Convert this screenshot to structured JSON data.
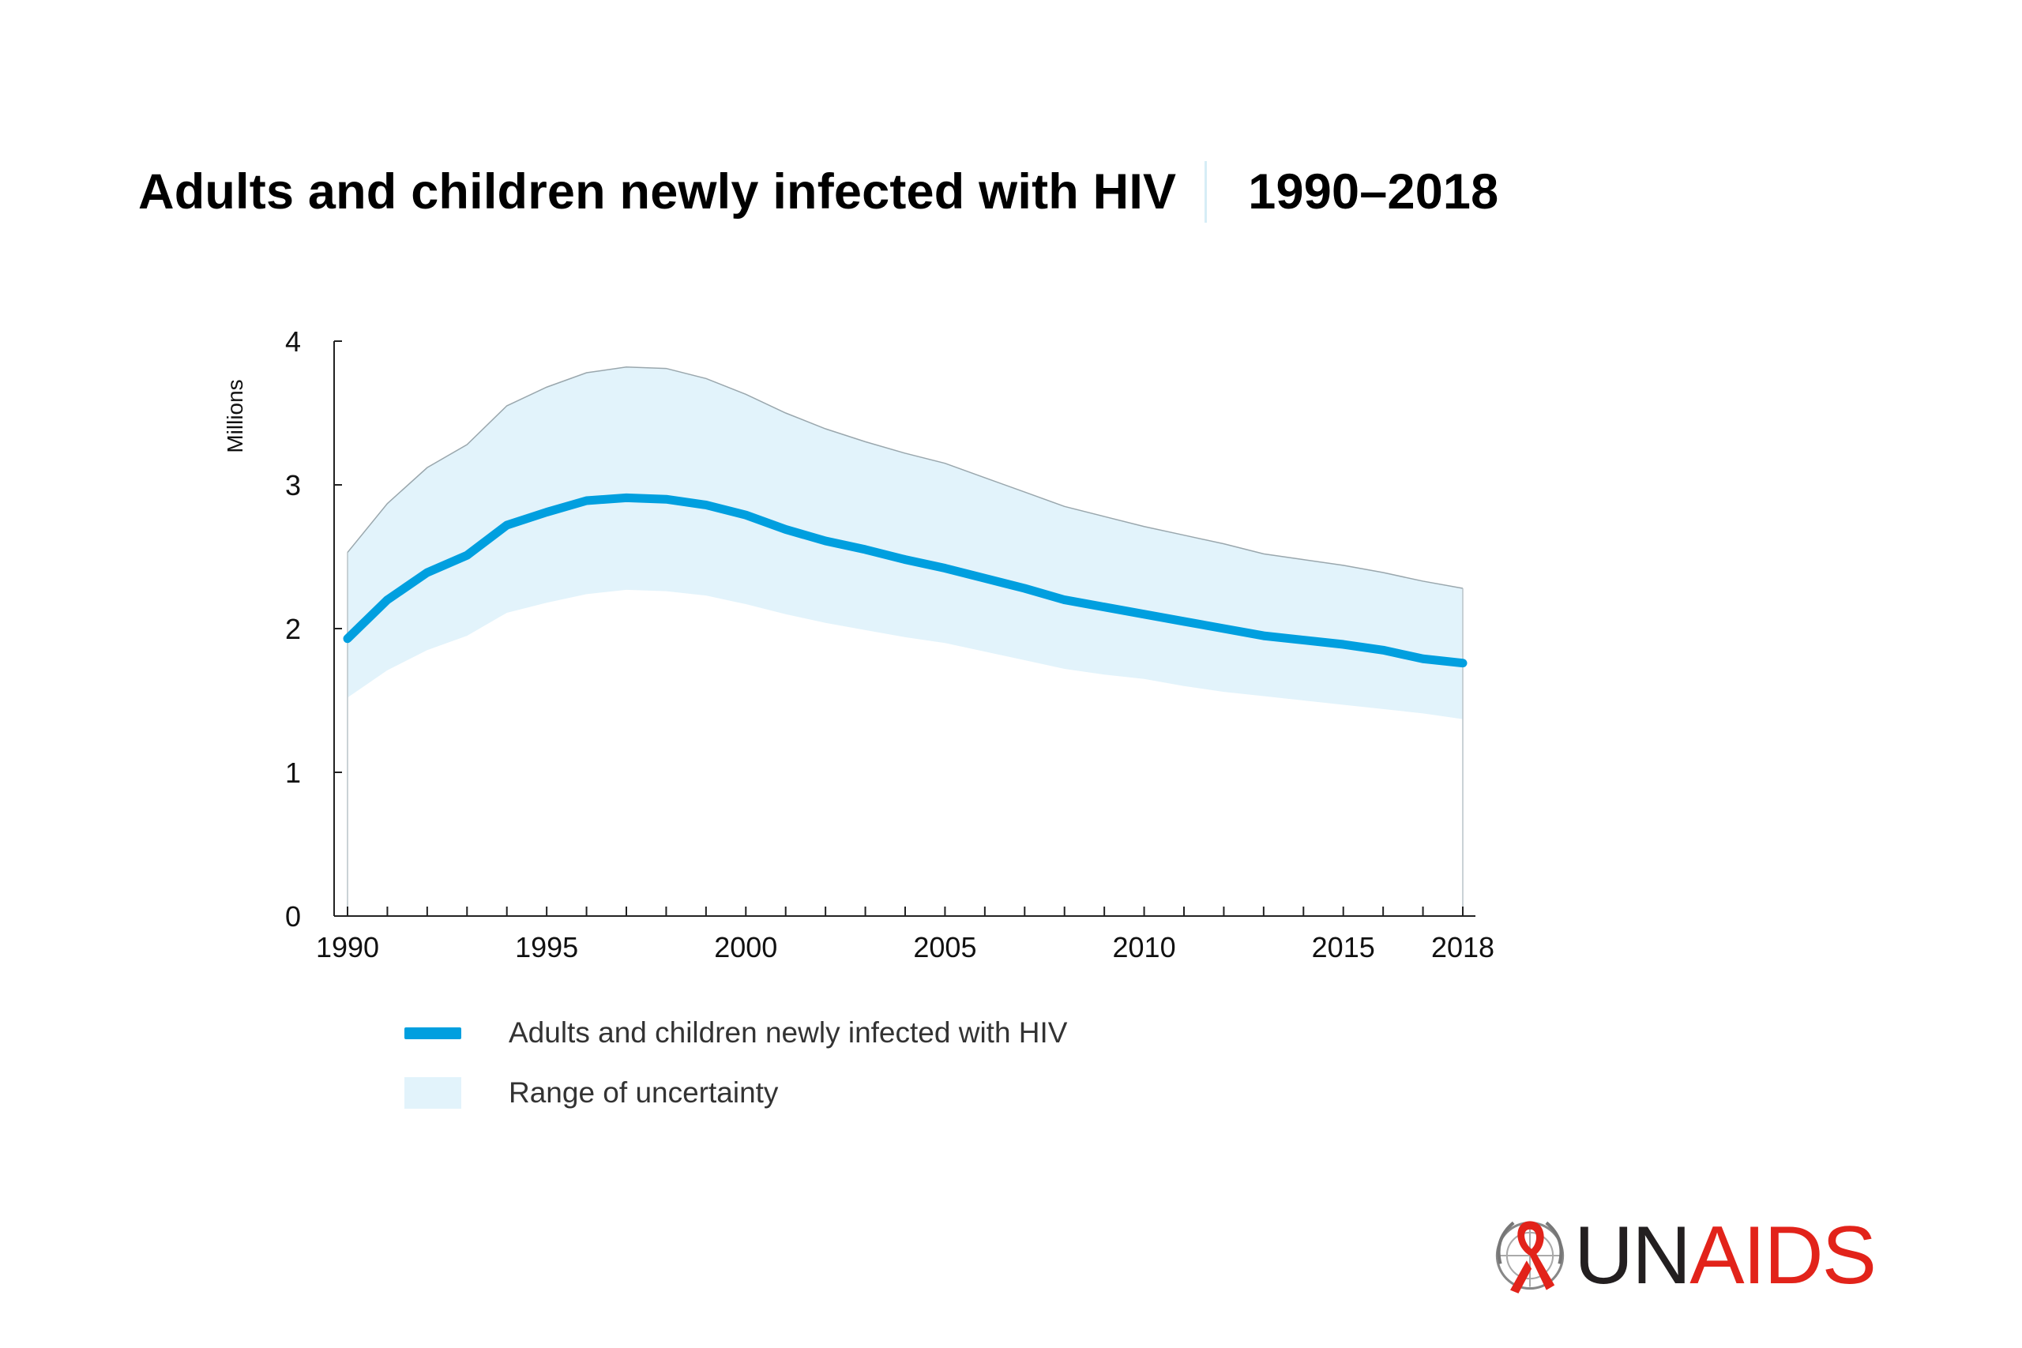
{
  "title": {
    "main": "Adults and children newly infected with HIV",
    "years": "1990–2018"
  },
  "chart_data": {
    "type": "line",
    "ylabel": "Millions",
    "xlabel": "",
    "ylim": [
      0,
      4
    ],
    "xlim": [
      1990,
      2018
    ],
    "y_ticks": [
      "0",
      "1",
      "2",
      "3",
      "4"
    ],
    "x_tick_labels": [
      "1990",
      "1995",
      "2000",
      "2005",
      "2010",
      "2015",
      "2018"
    ],
    "x": [
      1990,
      1991,
      1992,
      1993,
      1994,
      1995,
      1996,
      1997,
      1998,
      1999,
      2000,
      2001,
      2002,
      2003,
      2004,
      2005,
      2006,
      2007,
      2008,
      2009,
      2010,
      2011,
      2012,
      2013,
      2014,
      2015,
      2016,
      2017,
      2018
    ],
    "series": [
      {
        "name": "Adults and children newly infected with HIV",
        "color": "#009fdf",
        "values": [
          1.93,
          2.2,
          2.39,
          2.51,
          2.72,
          2.81,
          2.89,
          2.91,
          2.9,
          2.86,
          2.79,
          2.69,
          2.61,
          2.55,
          2.48,
          2.42,
          2.35,
          2.28,
          2.2,
          2.15,
          2.1,
          2.05,
          2.0,
          1.95,
          1.92,
          1.89,
          1.85,
          1.79,
          1.76
        ]
      }
    ],
    "uncertainty": {
      "name": "Range of uncertainty",
      "color": "#e2f3fb",
      "upper": [
        2.53,
        2.87,
        3.12,
        3.28,
        3.55,
        3.68,
        3.78,
        3.82,
        3.81,
        3.74,
        3.63,
        3.5,
        3.39,
        3.3,
        3.22,
        3.15,
        3.05,
        2.95,
        2.85,
        2.78,
        2.71,
        2.65,
        2.59,
        2.52,
        2.48,
        2.44,
        2.39,
        2.33,
        2.28
      ],
      "lower": [
        1.52,
        1.71,
        1.85,
        1.95,
        2.11,
        2.18,
        2.24,
        2.27,
        2.26,
        2.23,
        2.17,
        2.1,
        2.04,
        1.99,
        1.94,
        1.9,
        1.84,
        1.78,
        1.72,
        1.68,
        1.65,
        1.6,
        1.56,
        1.53,
        1.5,
        1.47,
        1.44,
        1.41,
        1.37
      ]
    },
    "grid": false,
    "legend_position": "bottom-left"
  },
  "legend": {
    "line_label": "Adults and children newly infected with HIV",
    "area_label": "Range of uncertainty"
  },
  "logo": {
    "un": "UN",
    "aids": "AIDS",
    "emblem_icon": "un-emblem-red-ribbon-icon"
  }
}
